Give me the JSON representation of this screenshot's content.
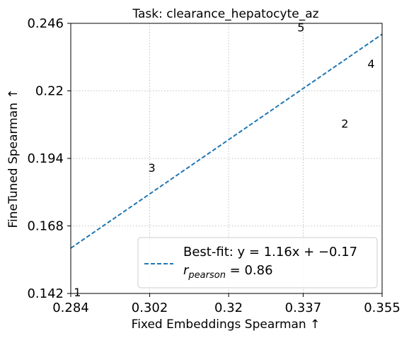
{
  "chart_data": {
    "type": "scatter",
    "title": "Task: clearance_hepatocyte_az",
    "xlabel": "Fixed Embeddings Spearman ↑",
    "ylabel": "FineTuned Spearman ↑",
    "xlim": [
      0.284,
      0.355
    ],
    "ylim": [
      0.142,
      0.246
    ],
    "xticks": [
      0.284,
      0.302,
      0.32,
      0.337,
      0.355
    ],
    "xtick_labels": [
      "0.284",
      "0.302",
      "0.32",
      "0.337",
      "0.355"
    ],
    "yticks": [
      0.142,
      0.168,
      0.194,
      0.22,
      0.246
    ],
    "ytick_labels": [
      "0.142",
      "0.168",
      "0.194",
      "0.22",
      "0.246"
    ],
    "grid": true,
    "points": [
      {
        "label": "1",
        "x": 0.2855,
        "y": 0.1425
      },
      {
        "label": "2",
        "x": 0.3465,
        "y": 0.2075
      },
      {
        "label": "3",
        "x": 0.3025,
        "y": 0.1905
      },
      {
        "label": "4",
        "x": 0.3525,
        "y": 0.2305
      },
      {
        "label": "5",
        "x": 0.3365,
        "y": 0.2445
      }
    ],
    "fit_line": {
      "slope": 1.16,
      "intercept": -0.17
    },
    "legend": {
      "position": "lower-right",
      "line1": "Best-fit: y = 1.16x + −0.17",
      "line2_prefix": "r",
      "line2_sub": "pearson",
      "line2_suffix": " = 0.86"
    },
    "colors": {
      "fit_line": "#1f77b4"
    }
  }
}
